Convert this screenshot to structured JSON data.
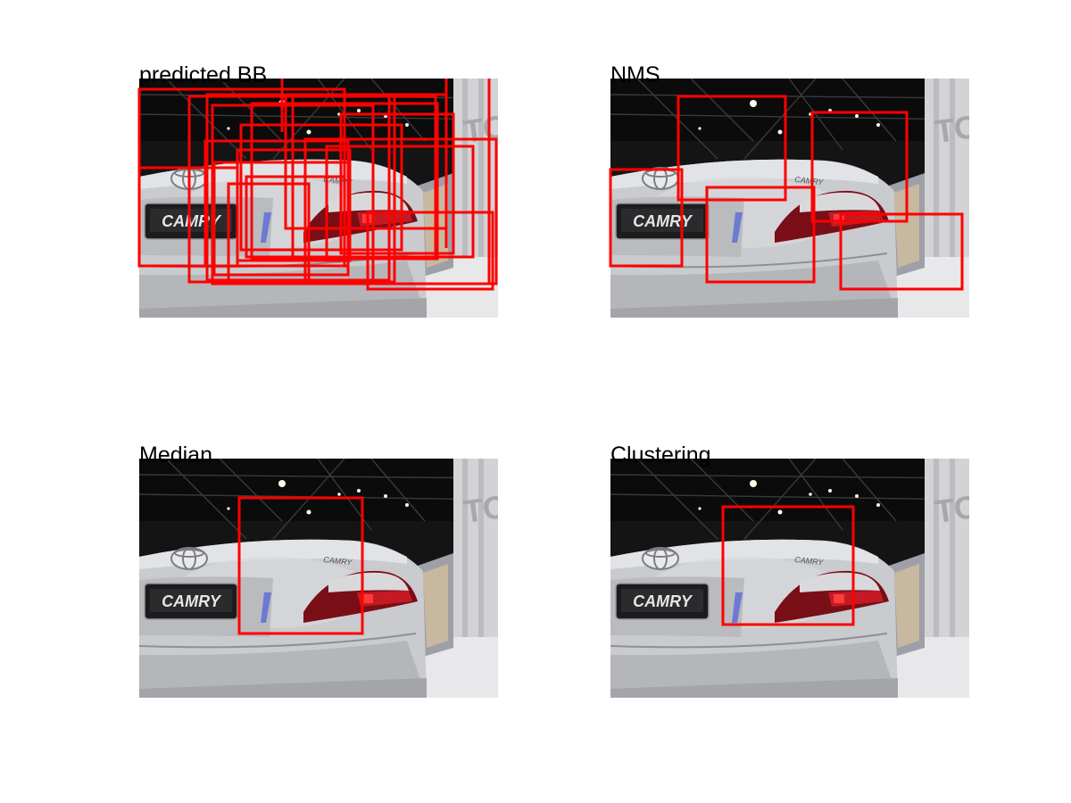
{
  "box_color": "#ff0000",
  "panels": [
    {
      "id": "predicted",
      "title": "predicted BB",
      "detected_object": "car"
    },
    {
      "id": "nms",
      "title": "NMS",
      "detected_object": "car"
    },
    {
      "id": "median",
      "title": "Median",
      "detected_object": "car"
    },
    {
      "id": "clustering",
      "title": "Clustering",
      "detected_object": "car"
    }
  ],
  "car": {
    "plate_text": "CAMRY",
    "badge_text": "CAMRY",
    "booth_sign_text": "TO"
  }
}
